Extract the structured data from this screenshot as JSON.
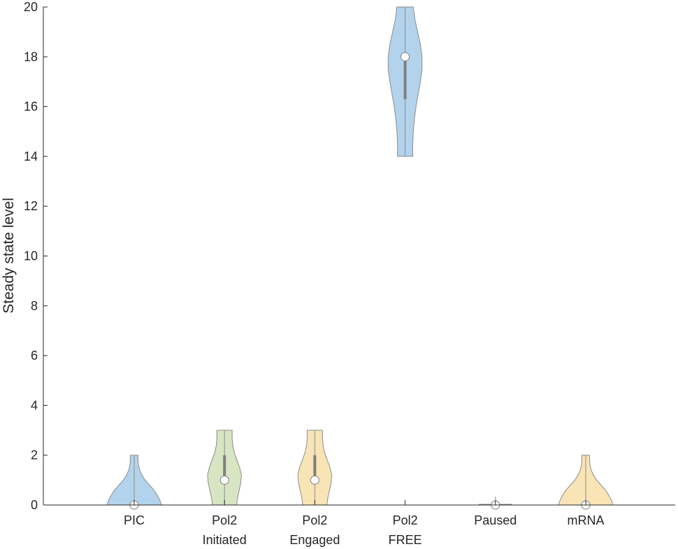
{
  "chart_data": {
    "type": "violin",
    "ylabel": "Steady state level",
    "ylim": [
      0,
      20
    ],
    "yticks": [
      0,
      2,
      4,
      6,
      8,
      10,
      12,
      14,
      16,
      18,
      20
    ],
    "categories": [
      [
        "PIC"
      ],
      [
        "Pol2",
        "Initiated"
      ],
      [
        "Pol2",
        "Engaged"
      ],
      [
        "Pol2",
        "FREE"
      ],
      [
        "Paused"
      ],
      [
        "mRNA"
      ]
    ],
    "series": [
      {
        "color": "#b3d3ec",
        "min": 0,
        "max": 2,
        "median": 0,
        "q1": 0,
        "q3": 0,
        "density": [
          [
            0,
            0.5
          ],
          [
            0.2,
            0.47
          ],
          [
            0.4,
            0.42
          ],
          [
            0.6,
            0.36
          ],
          [
            0.8,
            0.28
          ],
          [
            1.0,
            0.2
          ],
          [
            1.2,
            0.14
          ],
          [
            1.4,
            0.1
          ],
          [
            1.6,
            0.08
          ],
          [
            1.8,
            0.07
          ],
          [
            2.0,
            0.07
          ]
        ]
      },
      {
        "color": "#d7e5c3",
        "min": 0,
        "max": 3,
        "median": 1,
        "q1": 1,
        "q3": 2,
        "density": [
          [
            0,
            0.22
          ],
          [
            0.3,
            0.24
          ],
          [
            0.6,
            0.27
          ],
          [
            0.9,
            0.3
          ],
          [
            1.2,
            0.31
          ],
          [
            1.5,
            0.28
          ],
          [
            1.8,
            0.23
          ],
          [
            2.1,
            0.18
          ],
          [
            2.4,
            0.15
          ],
          [
            2.7,
            0.14
          ],
          [
            3.0,
            0.14
          ]
        ]
      },
      {
        "color": "#f9e4b6",
        "min": 0,
        "max": 3,
        "median": 1,
        "q1": 1,
        "q3": 2,
        "density": [
          [
            0,
            0.22
          ],
          [
            0.3,
            0.24
          ],
          [
            0.6,
            0.27
          ],
          [
            0.9,
            0.3
          ],
          [
            1.2,
            0.31
          ],
          [
            1.5,
            0.28
          ],
          [
            1.8,
            0.23
          ],
          [
            2.1,
            0.18
          ],
          [
            2.4,
            0.15
          ],
          [
            2.7,
            0.14
          ],
          [
            3.0,
            0.14
          ]
        ]
      },
      {
        "color": "#b3d3ec",
        "min": 14,
        "max": 20,
        "median": 18,
        "q1": 16.3,
        "q3": 18,
        "density": [
          [
            14,
            0.14
          ],
          [
            14.5,
            0.14
          ],
          [
            15,
            0.15
          ],
          [
            15.5,
            0.17
          ],
          [
            16,
            0.2
          ],
          [
            16.5,
            0.24
          ],
          [
            17,
            0.28
          ],
          [
            17.5,
            0.31
          ],
          [
            18,
            0.31
          ],
          [
            18.5,
            0.28
          ],
          [
            19,
            0.23
          ],
          [
            19.5,
            0.18
          ],
          [
            20,
            0.15
          ]
        ]
      },
      {
        "color": "#d7e5c3",
        "min": 0,
        "max": 0,
        "median": 0,
        "q1": 0,
        "q3": 0,
        "density": [
          [
            0,
            0.3
          ],
          [
            0.02,
            0.3
          ]
        ]
      },
      {
        "color": "#f9e4b6",
        "min": 0,
        "max": 2,
        "median": 0,
        "q1": 0,
        "q3": 0,
        "density": [
          [
            0,
            0.5
          ],
          [
            0.2,
            0.47
          ],
          [
            0.4,
            0.42
          ],
          [
            0.6,
            0.36
          ],
          [
            0.8,
            0.28
          ],
          [
            1.0,
            0.2
          ],
          [
            1.2,
            0.14
          ],
          [
            1.4,
            0.1
          ],
          [
            1.6,
            0.08
          ],
          [
            1.8,
            0.07
          ],
          [
            2.0,
            0.07
          ]
        ]
      }
    ]
  }
}
